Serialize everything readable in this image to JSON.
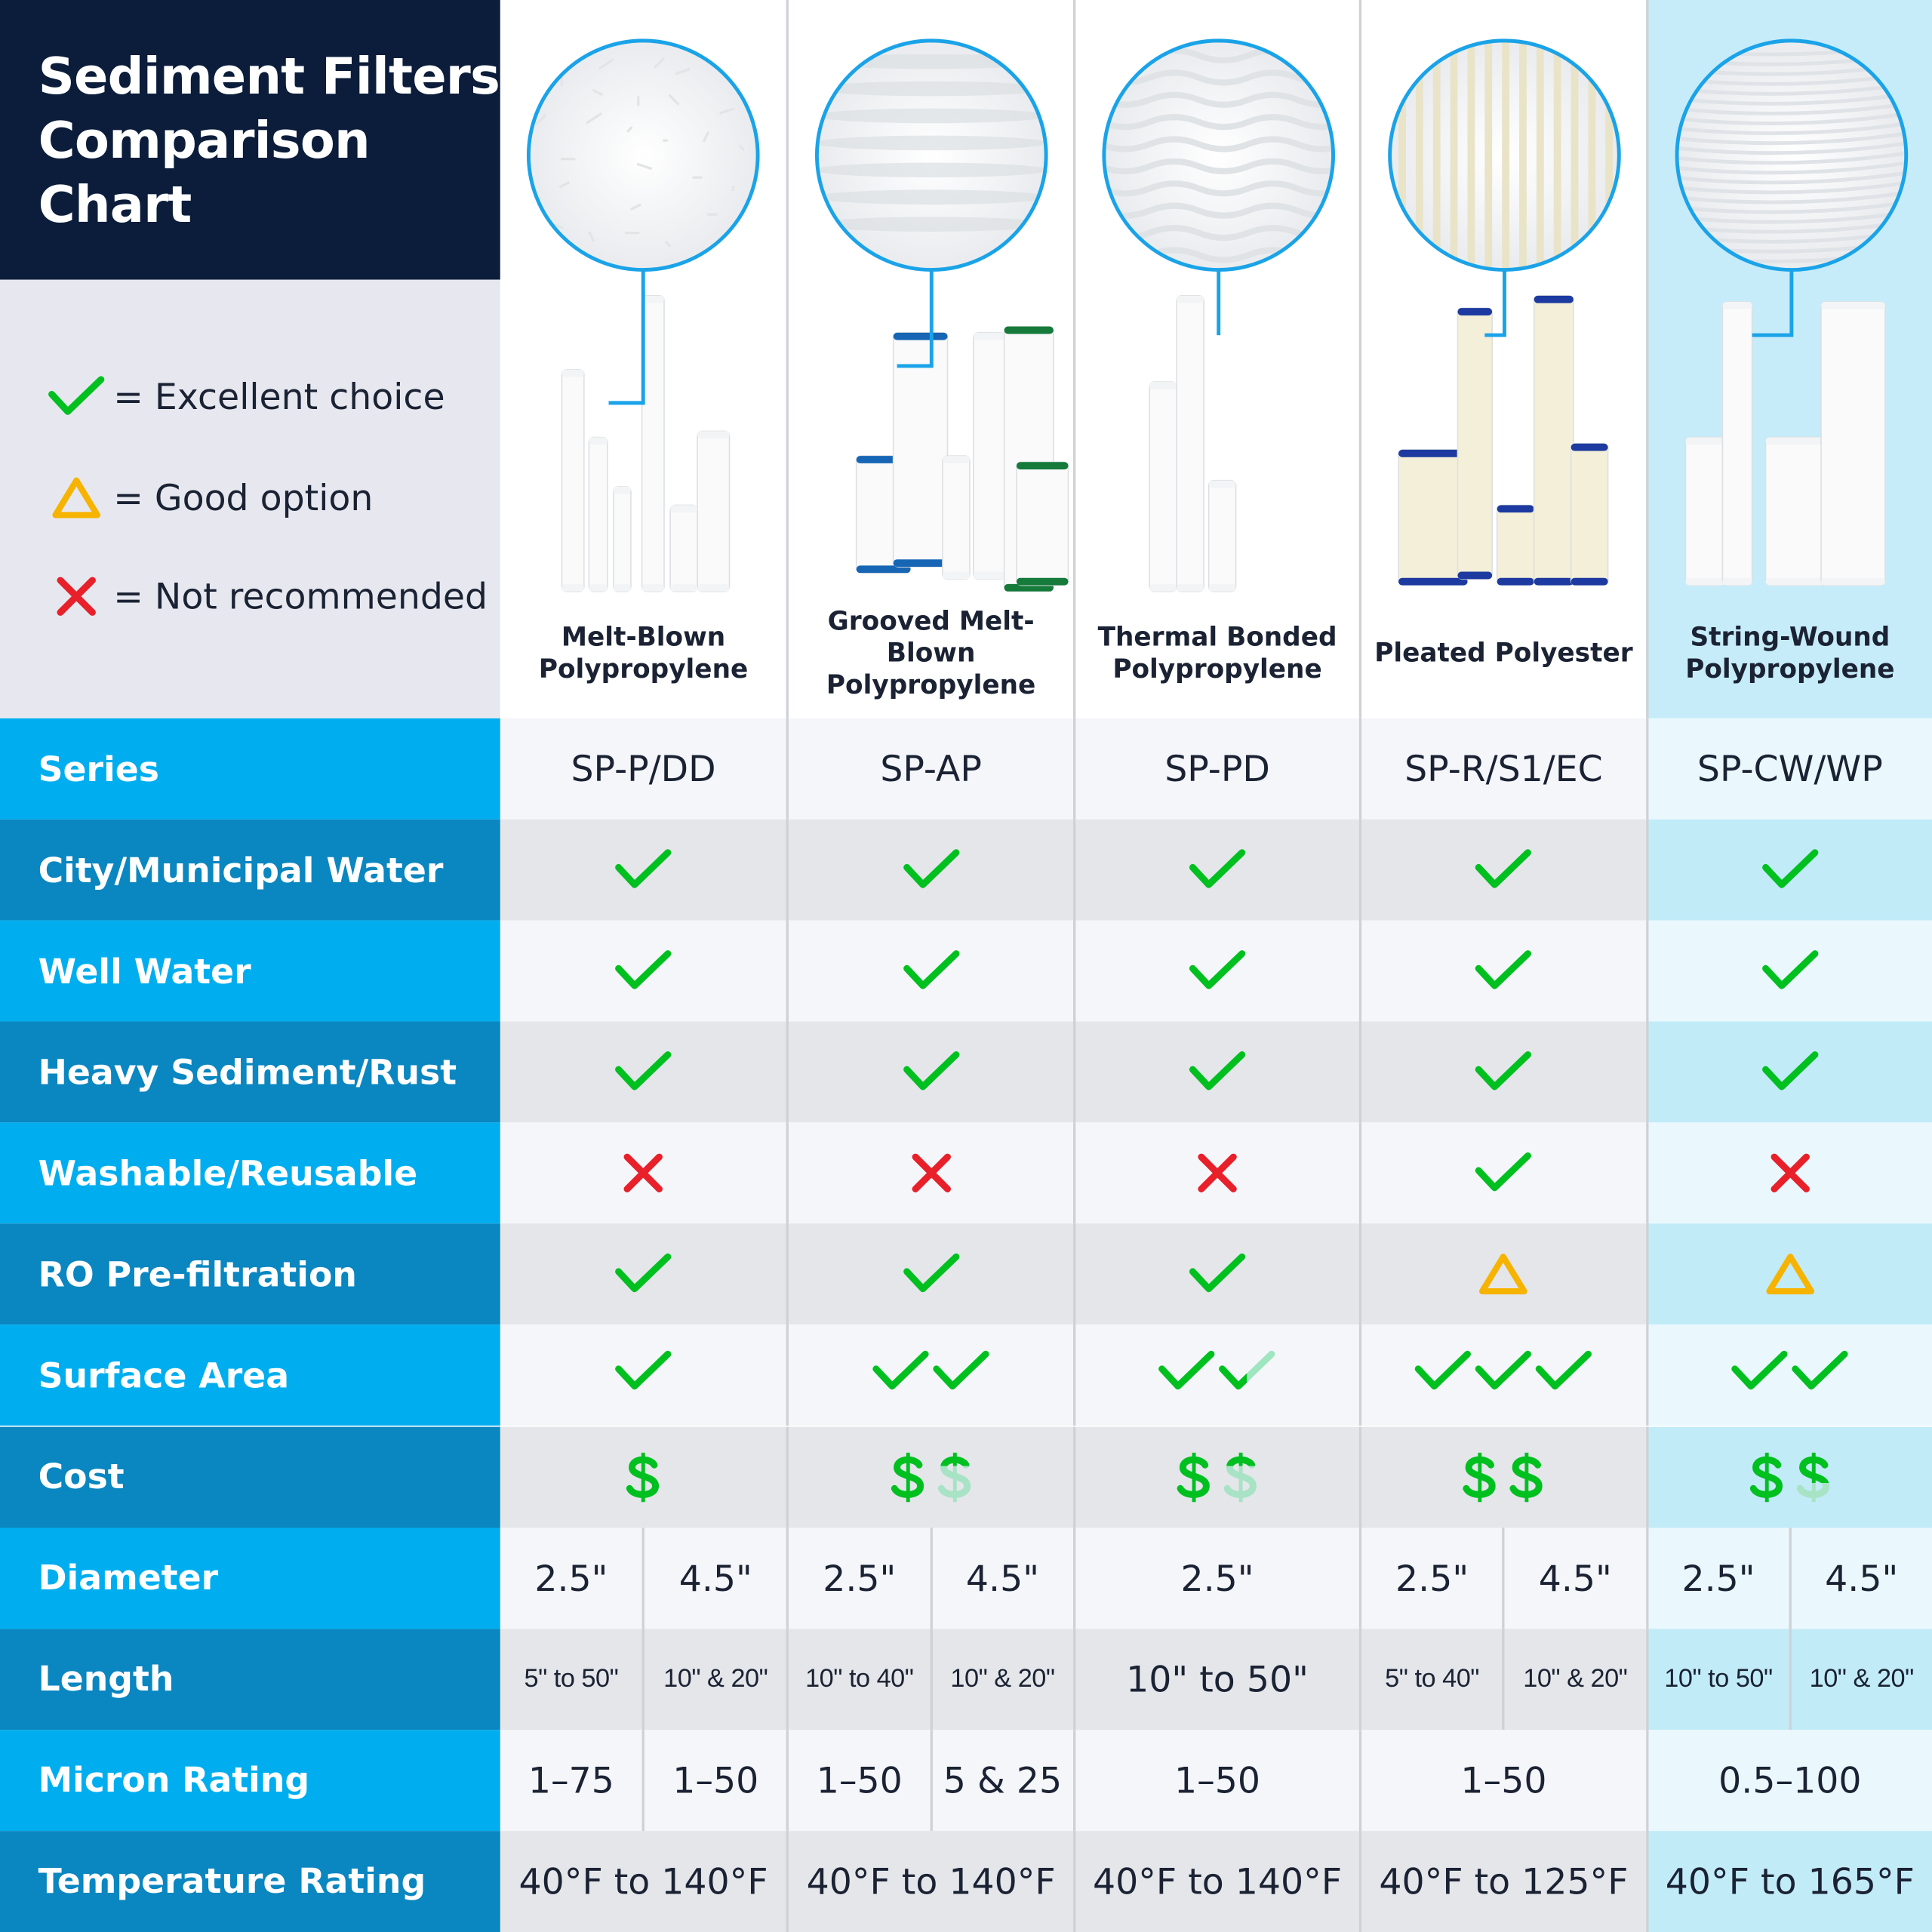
{
  "title": [
    "Sediment Filters",
    "Comparison",
    "Chart"
  ],
  "legend": [
    {
      "icon": "check",
      "label": "= Excellent choice"
    },
    {
      "icon": "triangle",
      "label": "= Good option"
    },
    {
      "icon": "cross",
      "label": "= Not recommended"
    }
  ],
  "colors": {
    "check": "#00c020",
    "triangle": "#f6b300",
    "cross": "#e8202a",
    "row_light": "#00aeef",
    "row_dark": "#0a86c0",
    "header": "#0b1d3a",
    "accent_col": "#c2ebf8"
  },
  "products": [
    {
      "name": [
        "Melt-Blown",
        "Polypropylene"
      ]
    },
    {
      "name": [
        "Grooved Melt-Blown",
        "Polypropylene"
      ]
    },
    {
      "name": [
        "Thermal Bonded",
        "Polypropylene"
      ]
    },
    {
      "name": [
        "Pleated Polyester"
      ]
    },
    {
      "name": [
        "String-Wound",
        "Polypropylene"
      ]
    }
  ],
  "rows": [
    {
      "label": "Series",
      "type": "text",
      "values": [
        "SP-P/DD",
        "SP-AP",
        "SP-PD",
        "SP-R/S1/EC",
        "SP-CW/WP"
      ]
    },
    {
      "label": "City/Municipal Water",
      "type": "icon",
      "values": [
        "check",
        "check",
        "check",
        "check",
        "check"
      ]
    },
    {
      "label": "Well Water",
      "type": "icon",
      "values": [
        "check",
        "check",
        "check",
        "check",
        "check"
      ]
    },
    {
      "label": "Heavy Sediment/Rust",
      "type": "icon",
      "values": [
        "check",
        "check",
        "check",
        "check",
        "check"
      ]
    },
    {
      "label": "Washable/Reusable",
      "type": "icon",
      "values": [
        "cross",
        "cross",
        "cross",
        "check",
        "cross"
      ]
    },
    {
      "label": "RO Pre-filtration",
      "type": "icon",
      "values": [
        "check",
        "check",
        "check",
        "triangle",
        "triangle"
      ]
    },
    {
      "label": "Surface Area",
      "type": "checks",
      "values": [
        1,
        2,
        1.5,
        3,
        2
      ]
    },
    {
      "label": "Cost",
      "type": "dollars",
      "values": [
        1,
        1.3,
        1.3,
        2,
        1.6
      ]
    },
    {
      "label": "Diameter",
      "type": "text",
      "values": [
        [
          "2.5\"",
          "4.5\""
        ],
        [
          "2.5\"",
          "4.5\""
        ],
        "2.5\"",
        [
          "2.5\"",
          "4.5\""
        ],
        [
          "2.5\"",
          "4.5\""
        ]
      ]
    },
    {
      "label": "Length",
      "type": "text",
      "values": [
        [
          "5\" to 50\"",
          "10\" & 20\""
        ],
        [
          "10\" to 40\"",
          "10\" & 20\""
        ],
        "10\" to 50\"",
        [
          "5\" to 40\"",
          "10\" & 20\""
        ],
        [
          "10\" to 50\"",
          "10\" & 20\""
        ]
      ]
    },
    {
      "label": "Micron Rating",
      "type": "text",
      "values": [
        [
          "1–75",
          "1–50"
        ],
        [
          "1–50",
          "5 & 25"
        ],
        "1–50",
        "1–50",
        "0.5–100"
      ]
    },
    {
      "label": "Temperature Rating",
      "type": "text",
      "values": [
        "40°F to 140°F",
        "40°F to 140°F",
        "40°F to 140°F",
        "40°F to 125°F",
        "40°F to 165°F"
      ]
    }
  ]
}
